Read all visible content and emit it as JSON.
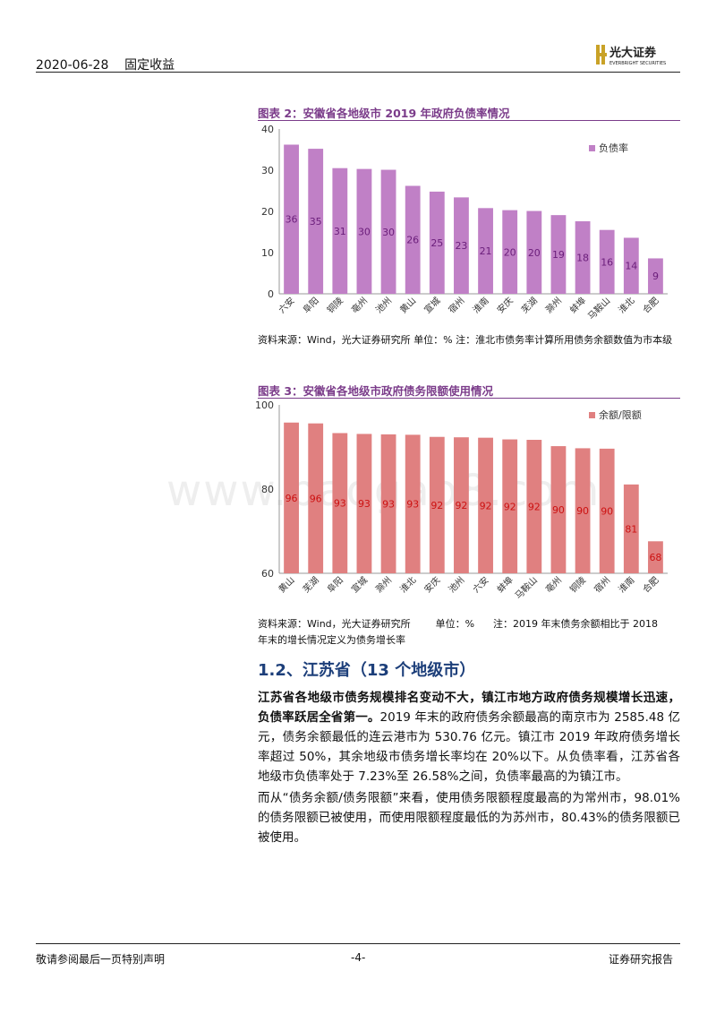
{
  "header": {
    "date_section": "2020-06-28    固定收益",
    "logo_cn": "光大证券",
    "logo_en": "EVERBRIGHT SECURITIES"
  },
  "watermark": "www.baogao8.com",
  "figure2": {
    "title": "图表 2：安徽省各地级市 2019 年政府负债率情况",
    "source": "资料来源：Wind，光大证券研究所  单位：%  注：淮北市债务率计算所用债务余额数值为市本级",
    "chart_data": {
      "type": "bar",
      "categories": [
        "六安",
        "阜阳",
        "铜陵",
        "亳州",
        "池州",
        "黄山",
        "宣城",
        "宿州",
        "淮南",
        "安庆",
        "芜湖",
        "滁州",
        "蚌埠",
        "马鞍山",
        "淮北",
        "合肥"
      ],
      "series": [
        {
          "name": "负债率",
          "values": [
            36.2,
            35.2,
            30.5,
            30.3,
            30.1,
            26.2,
            24.8,
            23.4,
            20.8,
            20.3,
            20.1,
            19.1,
            17.6,
            15.5,
            13.6,
            8.6
          ]
        }
      ],
      "data_labels": [
        "36",
        "35",
        "31",
        "30",
        "30",
        "26",
        "25",
        "23",
        "21",
        "20",
        "20",
        "19",
        "18",
        "16",
        "14",
        "9"
      ],
      "yticks": [
        "0",
        "10",
        "20",
        "30",
        "40"
      ],
      "ylim": [
        0,
        40
      ],
      "color": "#c080c6",
      "label_color": "#6a1d7a",
      "legend": "top-right",
      "grid": false
    }
  },
  "figure3": {
    "title": "图表 3：安徽省各地级市政府债务限额使用情况",
    "source_line1": "资料来源：Wind，光大证券研究所        单位：%      注：2019 年末债务余额相比于 2018",
    "source_line2": "年末的增长情况定义为债务增长率",
    "chart_data": {
      "type": "bar",
      "categories": [
        "黄山",
        "芜湖",
        "阜阳",
        "宣城",
        "滁州",
        "淮北",
        "安庆",
        "池州",
        "六安",
        "蚌埠",
        "马鞍山",
        "亳州",
        "铜陵",
        "宿州",
        "淮南",
        "合肥"
      ],
      "series": [
        {
          "name": "余额/限额",
          "values": [
            95.8,
            95.6,
            93.3,
            93.1,
            93.0,
            92.9,
            92.4,
            92.3,
            92.2,
            91.8,
            91.7,
            90.2,
            89.7,
            89.6,
            81.1,
            67.6
          ]
        }
      ],
      "data_labels": [
        "96",
        "96",
        "93",
        "93",
        "93",
        "93",
        "92",
        "92",
        "92",
        "92",
        "92",
        "90",
        "90",
        "90",
        "81",
        "68"
      ],
      "yticks": [
        "60",
        "80",
        "100"
      ],
      "ylim": [
        60,
        100
      ],
      "color": "#e08080",
      "label_color": "#cc1111",
      "legend": "top-right",
      "grid": false
    }
  },
  "section": {
    "heading": "1.2、江苏省（13 个地级市）",
    "p1_bold": "江苏省各地级市债务规模排名变动不大，镇江市地方政府债务规模增长迅速，负债率跃居全省第一。",
    "p1_rest": "2019 年末的政府债务余额最高的南京市为 2585.48 亿元，债务余额最低的连云港市为 530.76 亿元。镇江市 2019 年政府债务增长率超过 50%，其余地级市债务增长率均在 20%以下。从负债率看，江苏省各地级市负债率处于 7.23%至 26.58%之间，负债率最高的为镇江市。",
    "p2": "而从“债务余额/债务限额”来看，使用债务限额程度最高的为常州市，98.01%的债务限额已被使用，而使用限额程度最低的为苏州市，80.43%的债务限额已被使用。"
  },
  "footer": {
    "left": "敬请参阅最后一页特别声明",
    "center": "-4-",
    "right": "证券研究报告"
  }
}
